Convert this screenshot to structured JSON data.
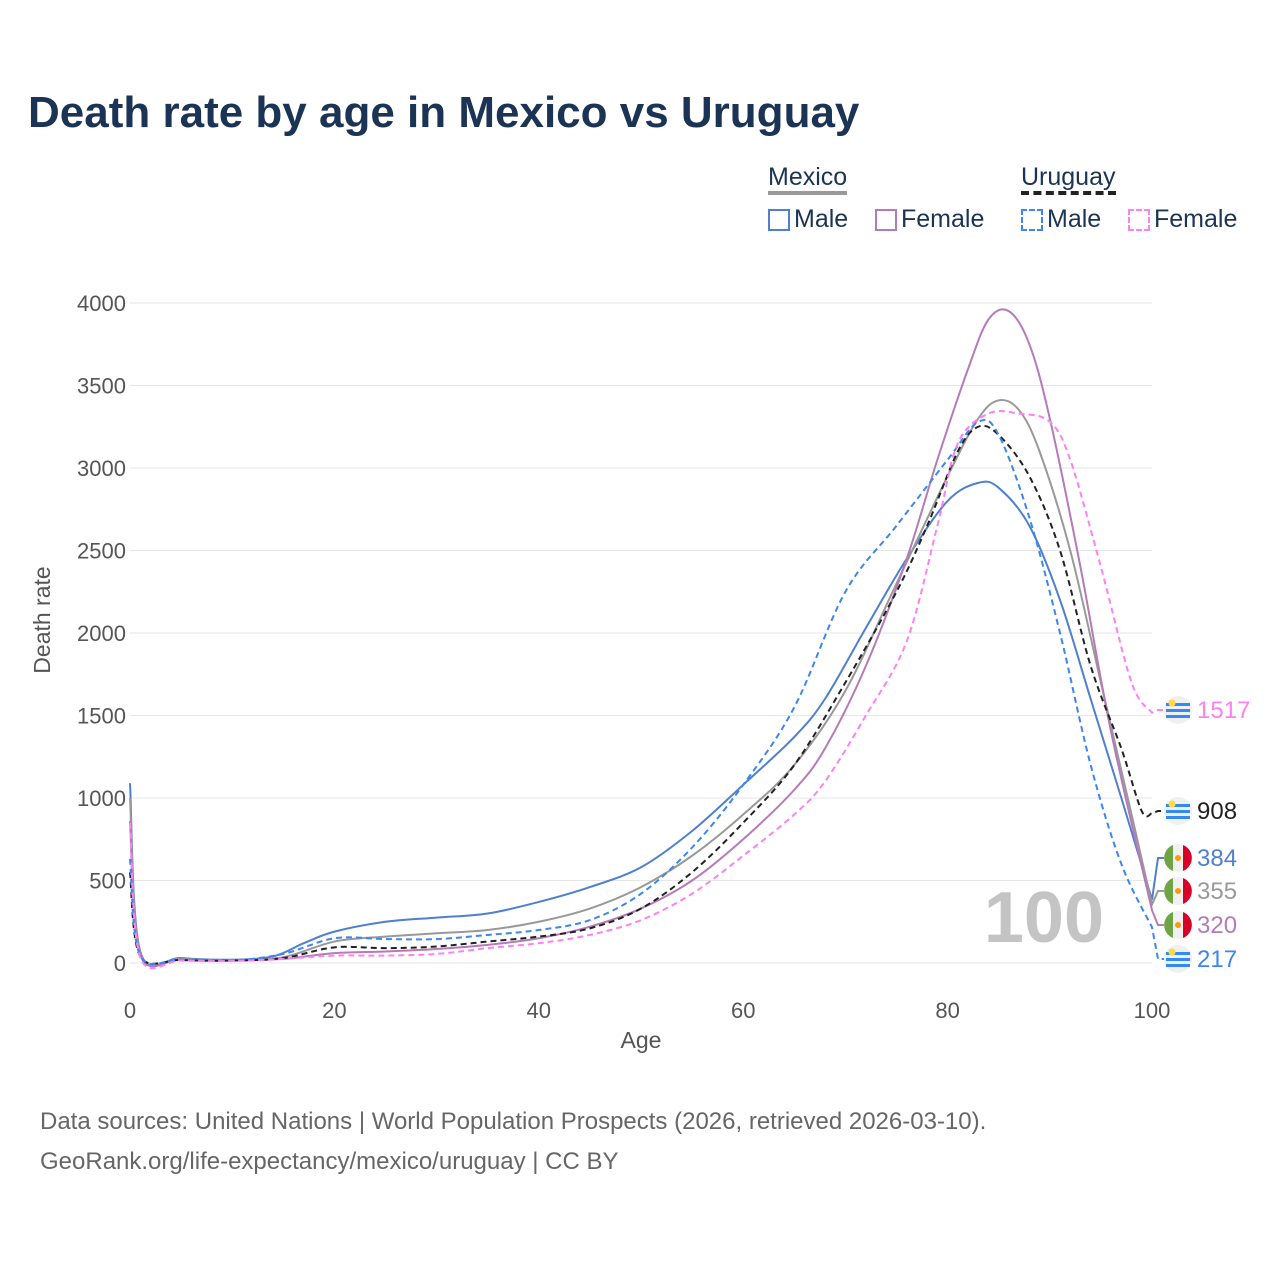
{
  "chart_data": {
    "type": "line",
    "title": "Death rate by age in Mexico vs Uruguay",
    "xlabel": "Age",
    "ylabel": "Death rate",
    "xlim": [
      0,
      100
    ],
    "ylim": [
      0,
      4000
    ],
    "xticks": [
      0,
      20,
      40,
      60,
      80,
      100
    ],
    "yticks": [
      0,
      500,
      1000,
      1500,
      2000,
      2500,
      3000,
      3500,
      4000
    ],
    "grid": true,
    "highlight_label": "100",
    "legend": {
      "placement": "top-right",
      "groups": [
        {
          "name": "Mexico",
          "items": [
            "Male",
            "Female"
          ]
        },
        {
          "name": "Uruguay",
          "items": [
            "Male",
            "Female"
          ]
        }
      ]
    },
    "series": [
      {
        "name": "Mexico Male",
        "color": "#4f7fcf",
        "dash": false,
        "end_label": "384",
        "flag": "mexico",
        "x": [
          0,
          1,
          5,
          10,
          14,
          17,
          20,
          25,
          30,
          35,
          40,
          45,
          50,
          55,
          60,
          65,
          68,
          72,
          76,
          80,
          83,
          85,
          88,
          91,
          94,
          97,
          100
        ],
        "y": [
          1090,
          70,
          30,
          20,
          40,
          120,
          190,
          250,
          275,
          300,
          370,
          460,
          580,
          800,
          1080,
          1370,
          1600,
          2030,
          2450,
          2800,
          2910,
          2880,
          2650,
          2200,
          1600,
          1000,
          384
        ]
      },
      {
        "name": "Mexico",
        "color": "#999999",
        "dash": false,
        "end_label": "355",
        "flag": "mexico",
        "x": [
          0,
          1,
          5,
          10,
          15,
          20,
          25,
          30,
          35,
          40,
          45,
          50,
          55,
          60,
          65,
          70,
          75,
          80,
          83,
          85,
          87,
          89,
          92,
          95,
          98,
          100
        ],
        "y": [
          1000,
          60,
          25,
          18,
          35,
          130,
          160,
          180,
          200,
          250,
          330,
          460,
          650,
          900,
          1200,
          1650,
          2300,
          2950,
          3300,
          3410,
          3350,
          3100,
          2500,
          1700,
          900,
          355
        ]
      },
      {
        "name": "Mexico Female",
        "color": "#b57bb8",
        "dash": false,
        "end_label": "320",
        "flag": "mexico",
        "x": [
          0,
          1,
          5,
          10,
          15,
          20,
          25,
          30,
          35,
          40,
          45,
          50,
          55,
          60,
          65,
          68,
          72,
          76,
          79,
          82,
          84,
          86,
          88,
          90,
          93,
          96,
          100
        ],
        "y": [
          860,
          50,
          20,
          15,
          25,
          60,
          70,
          85,
          110,
          150,
          220,
          330,
          500,
          750,
          1050,
          1300,
          1800,
          2450,
          3050,
          3600,
          3900,
          3950,
          3750,
          3300,
          2400,
          1400,
          320
        ]
      },
      {
        "name": "Uruguay",
        "color": "#222222",
        "dash": true,
        "end_label": "908",
        "flag": "uruguay",
        "x": [
          0,
          1,
          5,
          10,
          15,
          20,
          25,
          30,
          35,
          40,
          45,
          50,
          55,
          60,
          65,
          70,
          75,
          78,
          81,
          83,
          85,
          88,
          91,
          94,
          97,
          99,
          100
        ],
        "y": [
          550,
          40,
          18,
          15,
          30,
          95,
          90,
          100,
          130,
          160,
          210,
          330,
          550,
          850,
          1200,
          1700,
          2250,
          2650,
          3100,
          3250,
          3200,
          2950,
          2500,
          1800,
          1300,
          920,
          908
        ]
      },
      {
        "name": "Uruguay Male",
        "color": "#3b86f0",
        "dash": true,
        "end_label": "217",
        "flag": "uruguay",
        "x": [
          0,
          1,
          5,
          10,
          15,
          20,
          25,
          30,
          35,
          40,
          45,
          50,
          55,
          60,
          65,
          70,
          75,
          80,
          83,
          85,
          88,
          91,
          94,
          97,
          100
        ],
        "y": [
          630,
          45,
          20,
          15,
          55,
          150,
          145,
          145,
          170,
          200,
          260,
          420,
          700,
          1080,
          1550,
          2250,
          2650,
          3050,
          3280,
          3200,
          2700,
          2000,
          1200,
          600,
          217
        ]
      },
      {
        "name": "Uruguay Female",
        "color": "#ff80f0",
        "dash": true,
        "end_label": "1517",
        "flag": "uruguay",
        "x": [
          0,
          1,
          5,
          10,
          15,
          20,
          25,
          30,
          35,
          40,
          45,
          50,
          55,
          60,
          65,
          68,
          72,
          76,
          79,
          81,
          84,
          87,
          90,
          92,
          95,
          98,
          100
        ],
        "y": [
          850,
          35,
          15,
          12,
          25,
          45,
          45,
          55,
          90,
          120,
          170,
          260,
          420,
          650,
          900,
          1100,
          1500,
          1950,
          2650,
          3150,
          3330,
          3330,
          3280,
          3050,
          2400,
          1700,
          1517
        ]
      }
    ]
  },
  "legend": {
    "mexico": "Mexico",
    "uruguay": "Uruguay",
    "male": "Male",
    "female": "Female"
  },
  "footer": {
    "line1": "Data sources: United Nations | World Population Prospects (2026, retrieved 2026-03-10).",
    "line2": "GeoRank.org/life-expectancy/mexico/uruguay | CC BY"
  }
}
